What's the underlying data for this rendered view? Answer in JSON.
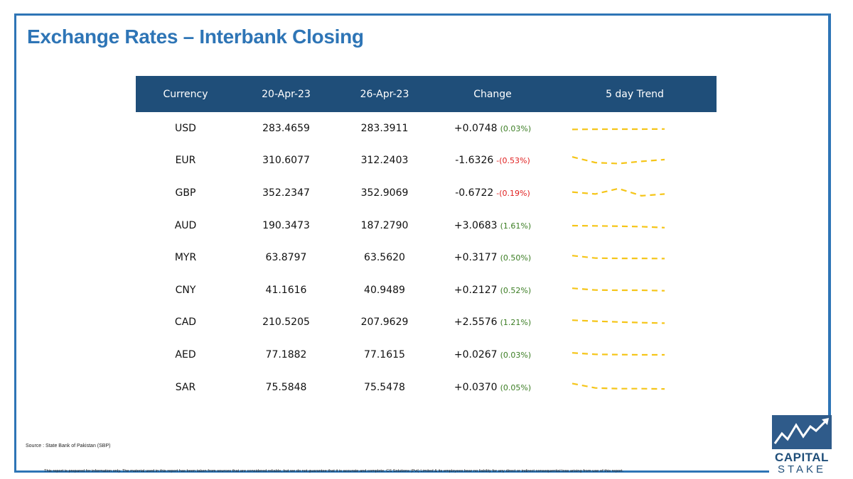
{
  "title": "Exchange Rates – Interbank Closing",
  "table": {
    "headers": [
      "Currency",
      "20-Apr-23",
      "26-Apr-23",
      "Change",
      "5 day Trend"
    ],
    "rows": [
      {
        "currency": "USD",
        "rate_prev": "283.4659",
        "rate_curr": "283.3911",
        "change": "+0.0748",
        "change_pct": "(0.03%)",
        "direction": "pos",
        "trend": [
          0.6,
          0.58,
          0.57,
          0.57,
          0.56
        ]
      },
      {
        "currency": "EUR",
        "rate_prev": "310.6077",
        "rate_curr": "312.2403",
        "change": "-1.6326",
        "change_pct": "-(0.53%)",
        "direction": "neg",
        "trend": [
          0.15,
          0.72,
          0.82,
          0.6,
          0.42
        ]
      },
      {
        "currency": "GBP",
        "rate_prev": "352.2347",
        "rate_curr": "352.9069",
        "change": "-0.6722",
        "change_pct": "-(0.19%)",
        "direction": "neg",
        "trend": [
          0.4,
          0.6,
          0.05,
          0.78,
          0.6
        ]
      },
      {
        "currency": "AUD",
        "rate_prev": "190.3473",
        "rate_curr": "187.2790",
        "change": "+3.0683",
        "change_pct": "(1.61%)",
        "direction": "pos",
        "trend": [
          0.5,
          0.52,
          0.56,
          0.6,
          0.7
        ]
      },
      {
        "currency": "MYR",
        "rate_prev": "63.8797",
        "rate_curr": "63.5620",
        "change": "+0.3177",
        "change_pct": "(0.50%)",
        "direction": "pos",
        "trend": [
          0.3,
          0.55,
          0.58,
          0.58,
          0.6
        ]
      },
      {
        "currency": "CNY",
        "rate_prev": "41.1616",
        "rate_curr": "40.9489",
        "change": "+0.2127",
        "change_pct": "(0.52%)",
        "direction": "pos",
        "trend": [
          0.3,
          0.48,
          0.5,
          0.5,
          0.55
        ]
      },
      {
        "currency": "CAD",
        "rate_prev": "210.5205",
        "rate_curr": "207.9629",
        "change": "+2.5576",
        "change_pct": "(1.21%)",
        "direction": "pos",
        "trend": [
          0.3,
          0.4,
          0.48,
          0.55,
          0.6
        ]
      },
      {
        "currency": "AED",
        "rate_prev": "77.1882",
        "rate_curr": "77.1615",
        "change": "+0.0267",
        "change_pct": "(0.03%)",
        "direction": "pos",
        "trend": [
          0.3,
          0.45,
          0.48,
          0.5,
          0.5
        ]
      },
      {
        "currency": "SAR",
        "rate_prev": "75.5848",
        "rate_curr": "75.5478",
        "change": "+0.0370",
        "change_pct": "(0.05%)",
        "direction": "pos",
        "trend": [
          0.1,
          0.55,
          0.62,
          0.62,
          0.65
        ]
      }
    ]
  },
  "source": "Source : State Bank of Pakistan (SBP)",
  "disclaimer": "This report is prepared for information only. The material used in this report has been taken from sources that are considered reliable, but we do not guarantee that it is accurate and complete. CS Solutions (Pvt) Limited & its employees bear no liability for any direct or indirect consequential loss arising from use of this report.",
  "logo": {
    "line1": "CAPITAL",
    "line2": "STAKE"
  },
  "colors": {
    "title": "#2e75b6",
    "header_bg": "#1f4e79",
    "positive": "#3b7d23",
    "negative": "#e02020",
    "trend": "#f5c518",
    "logo": "#1f4e79"
  },
  "icons": {
    "logo": "capital-stake-chart-icon"
  }
}
